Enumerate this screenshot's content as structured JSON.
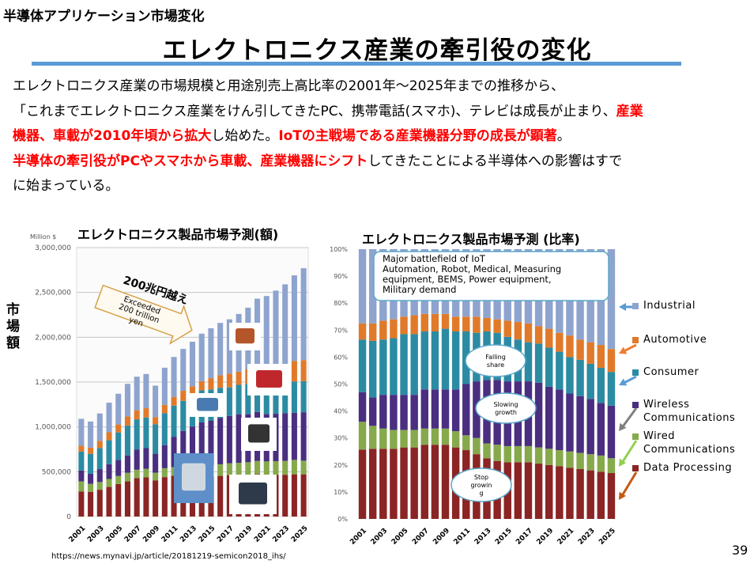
{
  "kicker": "半導体アプリケーション市場変化",
  "title": "エレクトロニクス産業の牽引役の変化",
  "body_lines": [
    [
      {
        "t": "エレクトロニクス産業の市場規模と用途別売上高比率の2001年～2025年までの推移から、",
        "red": false
      }
    ],
    [
      {
        "t": "「これまでエレクトロニクス産業をけん引してきたPC、携帯電話(スマホ)、テレビは成長が止まり、",
        "red": false
      },
      {
        "t": "産業",
        "red": true
      }
    ],
    [
      {
        "t": "機器、車載が2010年頃から拡大",
        "red": true
      },
      {
        "t": "し始めた。",
        "red": false
      },
      {
        "t": "IoTの主戦場である産業機器分野の成長が顕著",
        "red": true
      },
      {
        "t": "。",
        "red": false
      }
    ],
    [
      {
        "t": "半導体の牽引役がPCやスマホから車載、産業機器にシフト",
        "red": true
      },
      {
        "t": "してきたことによる半導体への影響はすで",
        "red": false
      }
    ],
    [
      {
        "t": "に始まっている。",
        "red": false
      }
    ]
  ],
  "left_side_label": "市場額",
  "source": "https://news.mynavi.jp/article/20181219-semicon2018_ihs/",
  "page_number": "39",
  "colors": {
    "Data Processing": "#8b2424",
    "Wired Communications": "#86a94c",
    "Wireless Communications": "#4a2e80",
    "Consumer": "#2b8ba3",
    "Automotive": "#e07a2a",
    "Industrial": "#8ea4cf"
  },
  "chart_data": [
    {
      "type": "bar",
      "stacked": true,
      "title": "エレクトロニクス製品市場予測(額)",
      "ylabel": "Million $",
      "ylim": [
        0,
        3000000
      ],
      "yticks": [
        "0",
        "500,000",
        "1,000,000",
        "1,500,000",
        "2,000,000",
        "2,500,000",
        "3,000,000"
      ],
      "xtick_labels": [
        "2001",
        "2003",
        "2005",
        "2007",
        "2009",
        "2011",
        "2013",
        "2015",
        "2017",
        "2019",
        "2021",
        "2023",
        "2025"
      ],
      "years": [
        2001,
        2002,
        2003,
        2004,
        2005,
        2006,
        2007,
        2008,
        2009,
        2010,
        2011,
        2012,
        2013,
        2014,
        2015,
        2016,
        2017,
        2018,
        2019,
        2020,
        2021,
        2022,
        2023,
        2024,
        2025
      ],
      "totals": [
        1090000,
        1060000,
        1150000,
        1270000,
        1370000,
        1480000,
        1560000,
        1590000,
        1460000,
        1660000,
        1780000,
        1870000,
        1950000,
        2040000,
        2100000,
        2160000,
        2200000,
        2260000,
        2330000,
        2430000,
        2460000,
        2520000,
        2590000,
        2690000,
        2770000
      ],
      "stack_split": "by share series of second chart",
      "annotations": {
        "jp": "200兆円越え",
        "en": [
          "Exceeded",
          "200 trillion",
          "yen"
        ]
      },
      "pictures": [
        "robot",
        "car",
        "tv",
        "smartphone",
        "base-station",
        "laptop"
      ]
    },
    {
      "type": "bar",
      "stacked": true,
      "title": "エレクトロニクス製品市場予測 (比率)",
      "ylim": [
        0,
        100
      ],
      "yticks": [
        "0%",
        "10%",
        "20%",
        "30%",
        "40%",
        "50%",
        "60%",
        "70%",
        "80%",
        "90%",
        "100%"
      ],
      "xtick_labels": [
        "2001",
        "2003",
        "2005",
        "2007",
        "2009",
        "2011",
        "2013",
        "2015",
        "2017",
        "2019",
        "2021",
        "2023",
        "2025"
      ],
      "years": [
        2001,
        2002,
        2003,
        2004,
        2005,
        2006,
        2007,
        2008,
        2009,
        2010,
        2011,
        2012,
        2013,
        2014,
        2015,
        2016,
        2017,
        2018,
        2019,
        2020,
        2021,
        2022,
        2023,
        2024,
        2025
      ],
      "series": [
        {
          "name": "Data Processing",
          "values": [
            25.7,
            26,
            26,
            26,
            26.5,
            26.5,
            27.5,
            27.5,
            27.5,
            26.5,
            25.5,
            24,
            22.5,
            21.5,
            21,
            21,
            21,
            20.5,
            20,
            19.5,
            19,
            18.5,
            18,
            17.5,
            17
          ]
        },
        {
          "name": "Wired Communications",
          "values": [
            10.3,
            8.5,
            7.5,
            7,
            6.5,
            6.5,
            6,
            6,
            6,
            6,
            5.5,
            6,
            5.5,
            6,
            6,
            6,
            6,
            6,
            6,
            6,
            6,
            6,
            6,
            6,
            5.5
          ]
        },
        {
          "name": "Wireless Communications",
          "values": [
            11,
            10.5,
            12.5,
            13,
            13,
            13,
            14.5,
            14.5,
            14.5,
            15.5,
            19,
            21,
            23.5,
            24,
            24,
            24,
            24,
            24,
            23,
            22.5,
            21.5,
            21,
            20.5,
            19.5,
            19.5
          ]
        },
        {
          "name": "Consumer",
          "values": [
            19.5,
            21,
            20.5,
            21,
            22.5,
            22.5,
            21.5,
            21.5,
            22.5,
            21.5,
            19.5,
            18,
            18,
            17.5,
            16.5,
            15.5,
            14.5,
            14.5,
            14.5,
            14,
            13.5,
            13.5,
            13,
            13,
            12.5
          ]
        },
        {
          "name": "Automotive",
          "values": [
            6,
            6.5,
            7,
            7,
            6.5,
            7,
            6.5,
            6.5,
            5.5,
            5.5,
            5.5,
            6,
            5,
            5,
            6,
            6.5,
            7,
            6.5,
            7,
            7,
            8,
            7.5,
            8,
            8.5,
            8.5
          ]
        },
        {
          "name": "Industrial",
          "values": [
            27.5,
            27.5,
            26.5,
            26,
            25,
            24.5,
            24,
            24,
            24,
            25,
            25,
            25,
            25.5,
            26,
            26.5,
            27,
            27.5,
            28.5,
            29.5,
            31,
            32,
            33.5,
            34.5,
            35.5,
            37
          ]
        }
      ],
      "legend": [
        {
          "label": "Industrial",
          "series": "Industrial"
        },
        {
          "label": "Automotive",
          "series": "Automotive"
        },
        {
          "label": "Consumer",
          "series": "Consumer"
        },
        {
          "label": "Wireless Communications",
          "series": "Wireless Communications"
        },
        {
          "label": "Wired Communications",
          "series": "Wired Communications"
        },
        {
          "label": "Data Processing",
          "series": "Data Processing"
        }
      ],
      "legend_placement": "right",
      "callouts": {
        "iot_box": [
          "Major battlefield of IoT",
          "Automation, Robot, Medical, Measuring",
          "equipment, BEMS, Power equipment,",
          "Military demand"
        ],
        "falling": [
          "Falling",
          "share"
        ],
        "slowing": [
          "Slowing",
          "growth"
        ],
        "stop": [
          "Stop",
          "growin",
          "g"
        ]
      }
    }
  ]
}
